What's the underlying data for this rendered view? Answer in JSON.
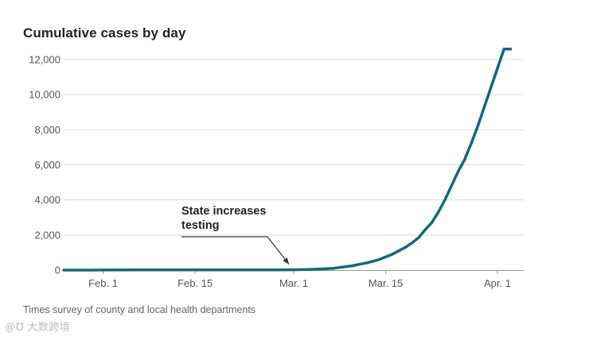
{
  "chart_data": {
    "type": "line",
    "title": "Cumulative cases by day",
    "xlabel": "",
    "ylabel": "",
    "x_domain_days": [
      -6,
      64
    ],
    "ylim": [
      0,
      12000
    ],
    "y_ticks": [
      0,
      2000,
      4000,
      6000,
      8000,
      10000,
      12000
    ],
    "y_tick_labels": [
      "0",
      "2,000",
      "4,000",
      "6,000",
      "8,000",
      "10,000",
      "12,000"
    ],
    "x_ticks": [
      {
        "label": "Feb. 1",
        "day": 0
      },
      {
        "label": "Feb. 15",
        "day": 14
      },
      {
        "label": "Mar. 1",
        "day": 29
      },
      {
        "label": "Mar. 15",
        "day": 43
      },
      {
        "label": "Apr. 1",
        "day": 60
      }
    ],
    "grid": true,
    "series": [
      {
        "name": "Cumulative cases",
        "color": "#0e6a7e",
        "day_offset_note": "days since Feb. 1",
        "x": [
          -6,
          -2,
          0,
          5,
          10,
          15,
          20,
          25,
          29,
          31,
          33,
          35,
          36,
          37,
          38,
          39,
          40,
          41,
          42,
          43,
          44,
          45,
          46,
          47,
          48,
          49,
          50,
          51,
          52,
          53,
          54,
          55,
          56,
          57,
          58,
          59,
          60,
          61,
          62
        ],
        "values": [
          0,
          2,
          5,
          8,
          10,
          12,
          14,
          15,
          20,
          30,
          60,
          100,
          150,
          200,
          250,
          330,
          400,
          500,
          600,
          750,
          900,
          1100,
          1300,
          1550,
          1850,
          2300,
          2700,
          3300,
          4000,
          4800,
          5600,
          6300,
          7200,
          8200,
          9300,
          10400,
          11500,
          12600,
          12600
        ]
      }
    ],
    "annotations": [
      {
        "text_lines": [
          "State increases",
          "testing"
        ],
        "target_day": 29,
        "target_value": 20
      }
    ]
  },
  "footer": {
    "source": "Times survey of county and local health departments",
    "watermark": "@℧ 大数跨境"
  }
}
